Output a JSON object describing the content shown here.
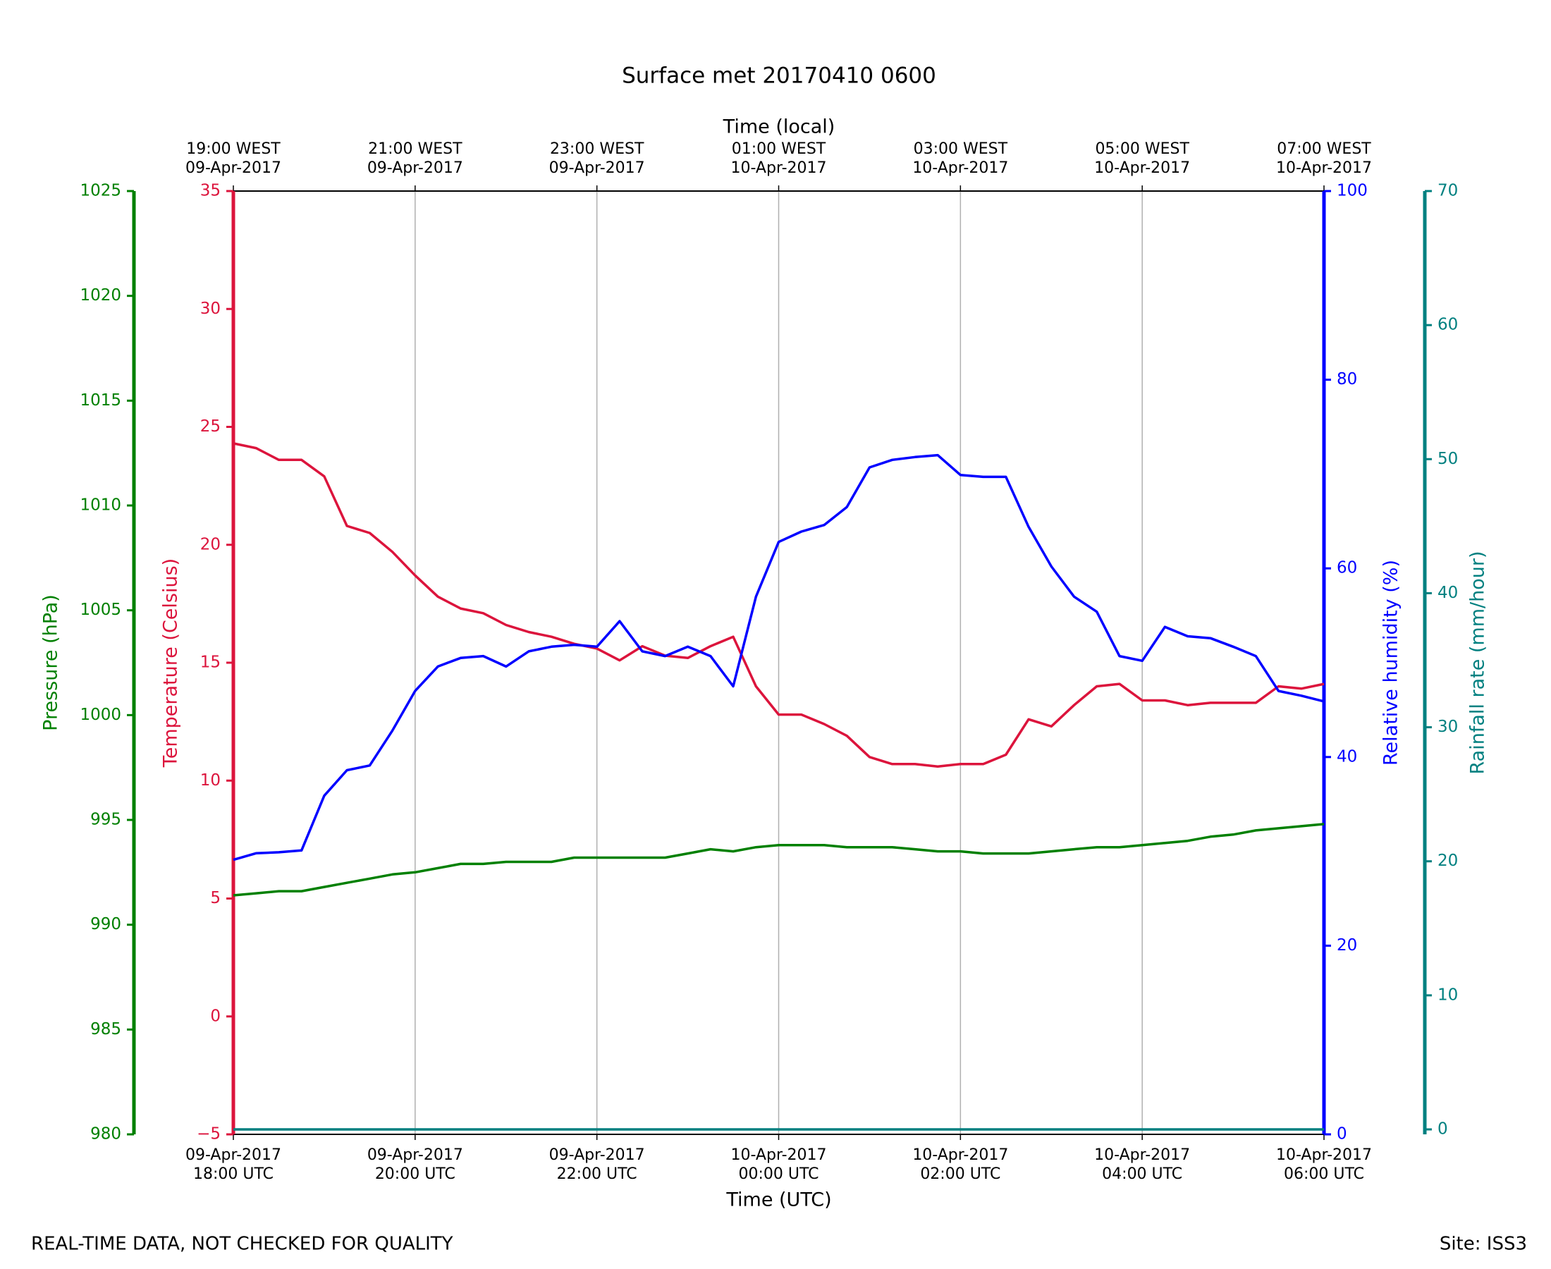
{
  "chart_data": {
    "type": "line",
    "title": "Surface met 20170410 0600",
    "xlabel": "Time (UTC)",
    "x2label": "Time (local)",
    "footer_left": "REAL-TIME DATA, NOT CHECKED FOR QUALITY",
    "footer_right": "Site: ISS3",
    "grid": true,
    "xlim": [
      "2017-04-09T18:00",
      "2017-04-10T06:00"
    ],
    "xticks": [
      {
        "value": "2017-04-09T18:00",
        "label": [
          "09-Apr-2017",
          "18:00 UTC"
        ]
      },
      {
        "value": "2017-04-09T20:00",
        "label": [
          "09-Apr-2017",
          "20:00 UTC"
        ]
      },
      {
        "value": "2017-04-09T22:00",
        "label": [
          "09-Apr-2017",
          "22:00 UTC"
        ]
      },
      {
        "value": "2017-04-10T00:00",
        "label": [
          "10-Apr-2017",
          "00:00 UTC"
        ]
      },
      {
        "value": "2017-04-10T02:00",
        "label": [
          "10-Apr-2017",
          "02:00 UTC"
        ]
      },
      {
        "value": "2017-04-10T04:00",
        "label": [
          "10-Apr-2017",
          "04:00 UTC"
        ]
      },
      {
        "value": "2017-04-10T06:00",
        "label": [
          "10-Apr-2017",
          "06:00 UTC"
        ]
      }
    ],
    "x2ticks": [
      {
        "value": "2017-04-09T18:00",
        "label": [
          "19:00 WEST",
          "09-Apr-2017"
        ]
      },
      {
        "value": "2017-04-09T20:00",
        "label": [
          "21:00 WEST",
          "09-Apr-2017"
        ]
      },
      {
        "value": "2017-04-09T22:00",
        "label": [
          "23:00 WEST",
          "09-Apr-2017"
        ]
      },
      {
        "value": "2017-04-10T00:00",
        "label": [
          "01:00 WEST",
          "10-Apr-2017"
        ]
      },
      {
        "value": "2017-04-10T02:00",
        "label": [
          "03:00 WEST",
          "10-Apr-2017"
        ]
      },
      {
        "value": "2017-04-10T04:00",
        "label": [
          "05:00 WEST",
          "10-Apr-2017"
        ]
      },
      {
        "value": "2017-04-10T06:00",
        "label": [
          "07:00 WEST",
          "10-Apr-2017"
        ]
      }
    ],
    "y_axes": [
      {
        "label": "Temperature (Celsius)",
        "color": "#dc143c",
        "side": "left",
        "lim": [
          -5,
          35
        ],
        "ticks": [
          {
            "value": -5,
            "label": "−5"
          },
          0,
          5,
          10,
          15,
          20,
          25,
          30,
          35
        ]
      },
      {
        "label": "Pressure (hPa)",
        "color": "#008000",
        "side": "left",
        "lim": [
          980,
          1025
        ],
        "ticks": [
          980,
          985,
          990,
          995,
          1000,
          1005,
          1010,
          1015,
          1020,
          1025
        ]
      },
      {
        "label": "Relative humidity (%)",
        "color": "#0000ff",
        "side": "right",
        "lim": [
          0,
          100
        ],
        "ticks": [
          0,
          20,
          40,
          60,
          80,
          100
        ]
      },
      {
        "label": "Rainfall rate (mm/hour)",
        "color": "#008080",
        "side": "right",
        "lim": [
          -0.37,
          70
        ],
        "ticks": [
          0,
          10,
          20,
          30,
          40,
          50,
          60,
          70
        ]
      }
    ],
    "x": [
      "2017-04-09T18:00",
      "2017-04-09T18:15",
      "2017-04-09T18:30",
      "2017-04-09T18:45",
      "2017-04-09T19:00",
      "2017-04-09T19:15",
      "2017-04-09T19:30",
      "2017-04-09T19:45",
      "2017-04-09T20:00",
      "2017-04-09T20:15",
      "2017-04-09T20:30",
      "2017-04-09T20:45",
      "2017-04-09T21:00",
      "2017-04-09T21:15",
      "2017-04-09T21:30",
      "2017-04-09T21:45",
      "2017-04-09T22:00",
      "2017-04-09T22:15",
      "2017-04-09T22:30",
      "2017-04-09T22:45",
      "2017-04-09T23:00",
      "2017-04-09T23:15",
      "2017-04-09T23:30",
      "2017-04-09T23:45",
      "2017-04-10T00:00",
      "2017-04-10T00:15",
      "2017-04-10T00:30",
      "2017-04-10T00:45",
      "2017-04-10T01:00",
      "2017-04-10T01:15",
      "2017-04-10T01:30",
      "2017-04-10T01:45",
      "2017-04-10T02:00",
      "2017-04-10T02:15",
      "2017-04-10T02:30",
      "2017-04-10T02:45",
      "2017-04-10T03:00",
      "2017-04-10T03:15",
      "2017-04-10T03:30",
      "2017-04-10T03:45",
      "2017-04-10T04:00",
      "2017-04-10T04:15",
      "2017-04-10T04:30",
      "2017-04-10T04:45",
      "2017-04-10T05:00",
      "2017-04-10T05:15",
      "2017-04-10T05:30",
      "2017-04-10T05:45",
      "2017-04-10T06:00"
    ],
    "series": [
      {
        "name": "Temperature",
        "color": "#dc143c",
        "axis": 0,
        "values": [
          24.3,
          24.1,
          23.6,
          23.6,
          22.9,
          20.8,
          20.5,
          19.7,
          18.7,
          17.8,
          17.3,
          17.1,
          16.6,
          16.3,
          16.1,
          15.8,
          15.6,
          15.1,
          15.7,
          15.3,
          15.2,
          15.7,
          16.1,
          14.0,
          12.8,
          12.8,
          12.4,
          11.9,
          11.0,
          10.7,
          10.7,
          10.6,
          10.7,
          10.7,
          11.1,
          12.6,
          12.3,
          13.2,
          14.0,
          14.1,
          13.4,
          13.4,
          13.2,
          13.3,
          13.3,
          13.3,
          14.0,
          13.9,
          14.1
        ]
      },
      {
        "name": "Pressure",
        "color": "#008000",
        "axis": 1,
        "values": [
          991.4,
          991.5,
          991.6,
          991.6,
          991.8,
          992.0,
          992.2,
          992.4,
          992.5,
          992.7,
          992.9,
          992.9,
          993.0,
          993.0,
          993.0,
          993.2,
          993.2,
          993.2,
          993.2,
          993.2,
          993.4,
          993.6,
          993.5,
          993.7,
          993.8,
          993.8,
          993.8,
          993.7,
          993.7,
          993.7,
          993.6,
          993.5,
          993.5,
          993.4,
          993.4,
          993.4,
          993.5,
          993.6,
          993.7,
          993.7,
          993.8,
          993.9,
          994.0,
          994.2,
          994.3,
          994.5,
          994.6,
          994.7,
          994.8
        ]
      },
      {
        "name": "Relative humidity",
        "color": "#0000ff",
        "axis": 2,
        "values": [
          29.1,
          29.8,
          29.9,
          30.1,
          35.9,
          38.6,
          39.1,
          42.8,
          47.0,
          49.6,
          50.5,
          50.7,
          49.6,
          51.2,
          51.7,
          51.9,
          51.7,
          54.4,
          51.2,
          50.7,
          51.7,
          50.7,
          47.5,
          57.0,
          62.8,
          63.9,
          64.6,
          66.5,
          70.7,
          71.5,
          71.8,
          72.0,
          69.9,
          69.7,
          69.7,
          64.4,
          60.2,
          57.0,
          55.4,
          50.7,
          50.2,
          53.8,
          52.8,
          52.6,
          51.7,
          50.7,
          47.0,
          46.5,
          45.9
        ]
      },
      {
        "name": "Rainfall rate",
        "color": "#008080",
        "axis": 3,
        "values": [
          0,
          0,
          0,
          0,
          0,
          0,
          0,
          0,
          0,
          0,
          0,
          0,
          0,
          0,
          0,
          0,
          0,
          0,
          0,
          0,
          0,
          0,
          0,
          0,
          0,
          0,
          0,
          0,
          0,
          0,
          0,
          0,
          0,
          0,
          0,
          0,
          0,
          0,
          0,
          0,
          0,
          0,
          0,
          0,
          0,
          0,
          0,
          0,
          0
        ]
      }
    ]
  }
}
